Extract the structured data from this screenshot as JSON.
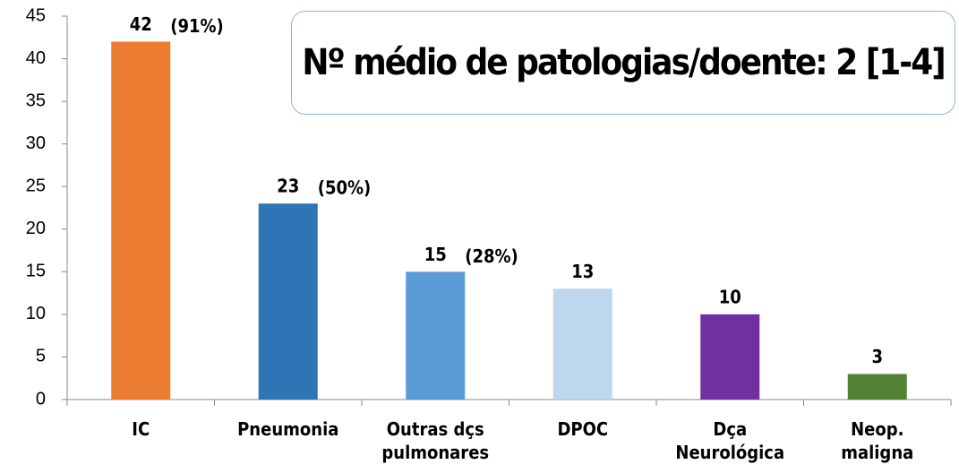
{
  "chart_data": {
    "type": "bar",
    "categories": [
      "IC",
      "Pneumonia",
      "Outras dçs pulmonares",
      "DPOC",
      "Dça Neurológica",
      "Neop. maligna"
    ],
    "values": [
      42,
      23,
      15,
      13,
      10,
      3
    ],
    "colors": [
      "#ed7d31",
      "#2e75b6",
      "#5b9bd5",
      "#bdd7ee",
      "#7030a0",
      "#548235"
    ],
    "percent_labels": [
      {
        "value": 91,
        "label": "(91%)"
      },
      {
        "value": 50,
        "label": "(50%)"
      },
      {
        "value": 28,
        "label": "(28%)"
      }
    ],
    "annotation": "Nº médio de patologias/doente: 2 [1-4]",
    "ylim": [
      0,
      45
    ],
    "yticks": [
      0,
      5,
      10,
      15,
      20,
      25,
      30,
      35,
      40,
      45
    ],
    "grid": false
  }
}
